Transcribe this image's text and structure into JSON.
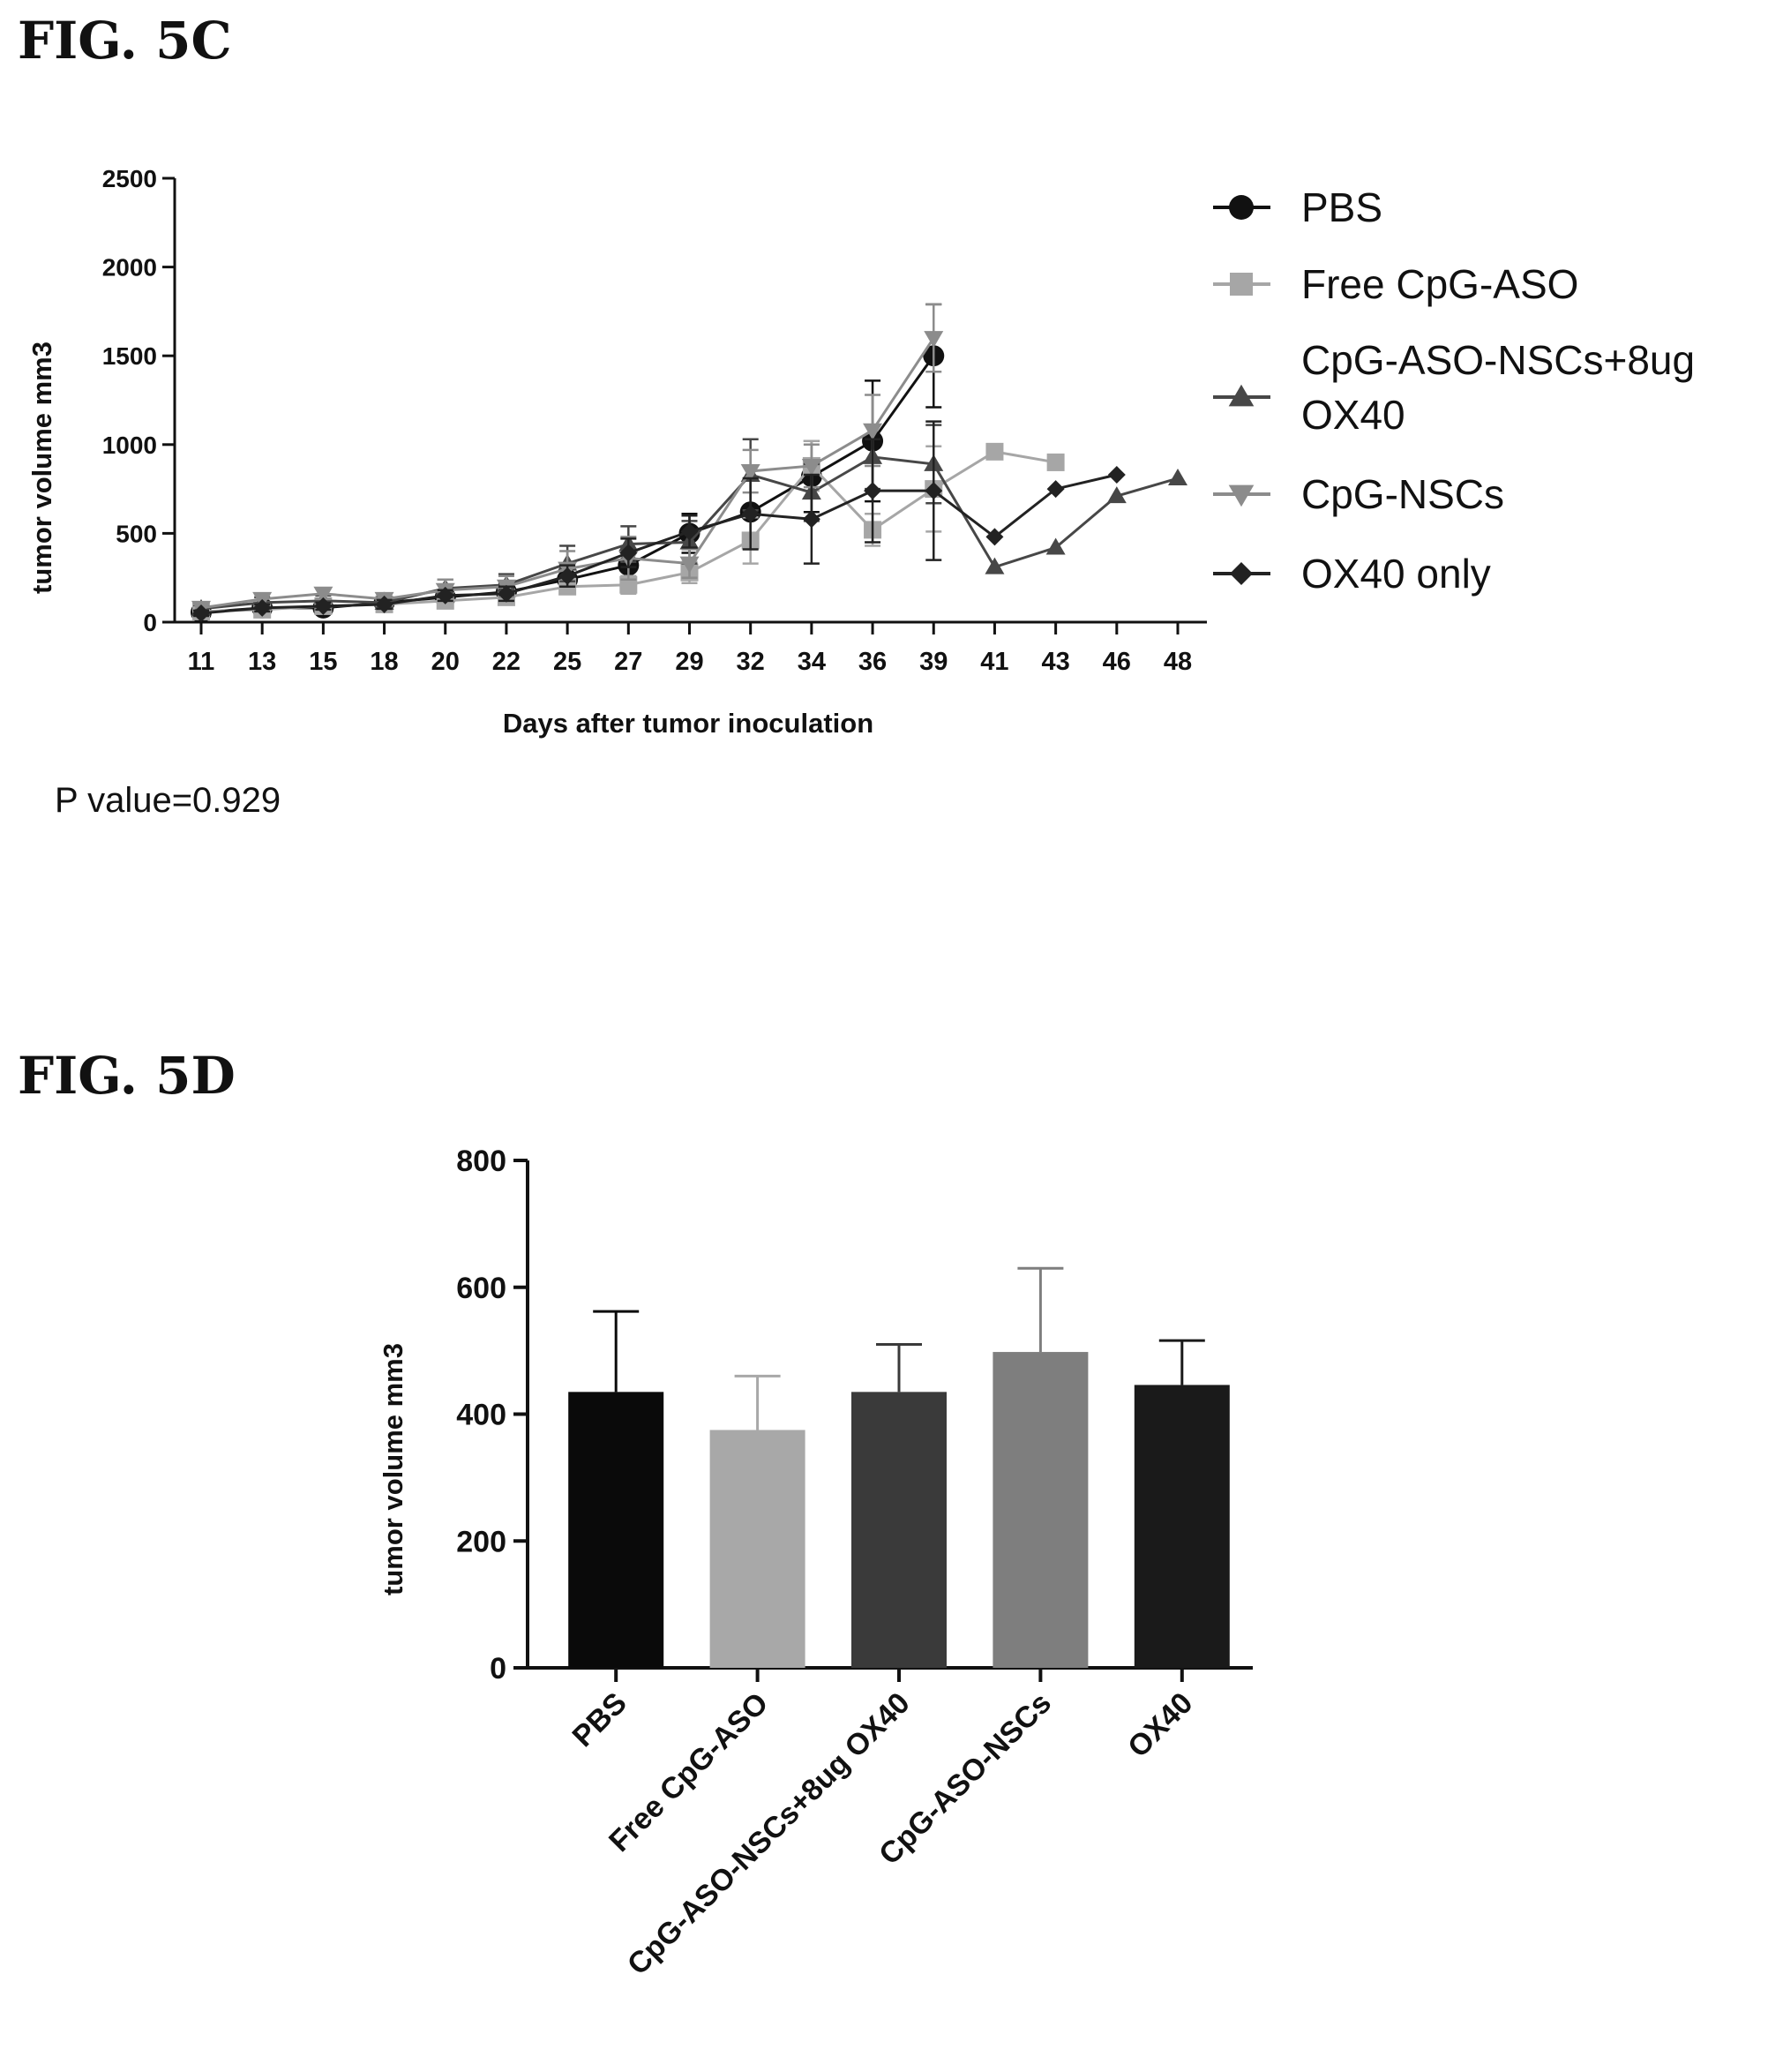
{
  "figures": {
    "fig5c_label": "FIG. 5C",
    "fig5d_label": "FIG. 5D",
    "p_value_text": "P value=0.929"
  },
  "chart_data": [
    {
      "type": "line",
      "title": "",
      "xlabel": "Days after tumor inoculation",
      "ylabel": "tumor volume mm3",
      "categories": [
        "11",
        "13",
        "15",
        "18",
        "20",
        "22",
        "25",
        "27",
        "29",
        "32",
        "34",
        "36",
        "39",
        "41",
        "43",
        "46",
        "48"
      ],
      "ylim": [
        0,
        2500
      ],
      "yticks": [
        0,
        500,
        1000,
        1500,
        2000,
        2500
      ],
      "legend_position": "right",
      "series": [
        {
          "name": "PBS",
          "color": "#111111",
          "marker": "circle",
          "values": [
            55,
            80,
            80,
            110,
            140,
            170,
            240,
            320,
            500,
            620,
            820,
            1020,
            1500,
            null,
            null,
            null,
            null
          ],
          "errors": [
            20,
            25,
            25,
            30,
            40,
            50,
            70,
            90,
            110,
            180,
            200,
            340,
            290,
            null,
            null,
            null,
            null
          ]
        },
        {
          "name": "Free CpG-ASO",
          "color": "#a6a6a6",
          "marker": "square",
          "values": [
            60,
            70,
            90,
            100,
            120,
            140,
            200,
            210,
            280,
            460,
            880,
            520,
            750,
            960,
            900,
            null,
            null
          ],
          "errors": [
            15,
            20,
            20,
            25,
            30,
            35,
            40,
            50,
            60,
            130,
            140,
            90,
            240,
            null,
            null,
            null,
            null
          ]
        },
        {
          "name": "CpG-ASO-NSCs+8ug OX40",
          "color": "#474747",
          "marker": "triangle-up",
          "values": [
            75,
            110,
            120,
            110,
            190,
            210,
            330,
            440,
            450,
            830,
            730,
            930,
            890,
            310,
            420,
            710,
            810
          ],
          "errors": [
            20,
            30,
            30,
            30,
            50,
            60,
            100,
            100,
            120,
            200,
            160,
            180,
            220,
            null,
            null,
            null,
            null
          ]
        },
        {
          "name": "CpG-NSCs",
          "color": "#8c8c8c",
          "marker": "triangle-down",
          "values": [
            80,
            130,
            160,
            130,
            180,
            200,
            300,
            360,
            330,
            850,
            880,
            1080,
            1600,
            null,
            null,
            null,
            null
          ],
          "errors": [
            20,
            30,
            30,
            30,
            60,
            60,
            100,
            120,
            80,
            120,
            120,
            200,
            190,
            null,
            null,
            null,
            null
          ]
        },
        {
          "name": "OX40 only",
          "color": "#222222",
          "marker": "diamond",
          "values": [
            50,
            80,
            90,
            100,
            150,
            160,
            260,
            390,
            510,
            610,
            580,
            740,
            740,
            480,
            750,
            830,
            null
          ],
          "errors": [
            15,
            20,
            20,
            25,
            30,
            40,
            60,
            80,
            90,
            200,
            250,
            290,
            390,
            null,
            null,
            null,
            null
          ]
        }
      ]
    },
    {
      "type": "bar",
      "title": "",
      "xlabel": "",
      "ylabel": "tumor volume mm3",
      "categories": [
        "PBS",
        "Free CpG-ASO",
        "CpG-ASO-NSCs+8ug OX40",
        "CpG-ASO-NSCs",
        "OX40"
      ],
      "values": [
        435,
        375,
        435,
        498,
        446
      ],
      "errors": [
        127,
        85,
        75,
        132,
        70
      ],
      "colors": [
        "#0a0a0a",
        "#a8a8a8",
        "#3a3a3a",
        "#7e7e7e",
        "#1a1a1a"
      ],
      "ylim": [
        0,
        800
      ],
      "yticks": [
        0,
        200,
        400,
        600,
        800
      ]
    }
  ]
}
